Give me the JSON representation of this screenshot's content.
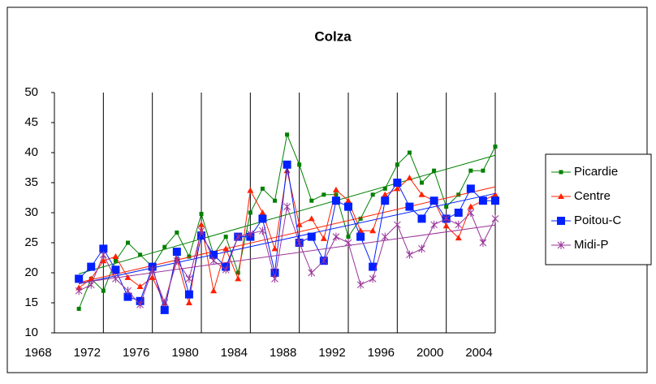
{
  "chart_data": {
    "type": "line",
    "title": "Colza",
    "x": [
      1970,
      1971,
      1972,
      1973,
      1974,
      1975,
      1976,
      1977,
      1978,
      1979,
      1980,
      1981,
      1982,
      1983,
      1984,
      1985,
      1986,
      1987,
      1988,
      1989,
      1990,
      1991,
      1992,
      1993,
      1994,
      1995,
      1996,
      1997,
      1998,
      1999,
      2000,
      2001,
      2002,
      2003,
      2004
    ],
    "series": [
      {
        "name": "Picardie",
        "color": "#008000",
        "marker": "square",
        "values": [
          14,
          19,
          17,
          22,
          25,
          23,
          21,
          24.3,
          26.7,
          22.7,
          29.8,
          23,
          26,
          20,
          30,
          34,
          32,
          43,
          38,
          32,
          33,
          33,
          26,
          29,
          33,
          34,
          38,
          40,
          35,
          37,
          31,
          33,
          37,
          37,
          41
        ]
      },
      {
        "name": "Centre",
        "color": "#ff2000",
        "marker": "triangle",
        "values": [
          17.5,
          19,
          22,
          22.7,
          19.2,
          17.7,
          19.2,
          15,
          22.3,
          15,
          28,
          17,
          24,
          19,
          33.7,
          30,
          24,
          37,
          28,
          29,
          25.7,
          33.8,
          32,
          27,
          27,
          33,
          34,
          35.8,
          33,
          32,
          27.8,
          25.8,
          31,
          32,
          33
        ]
      },
      {
        "name": "Poitou-C",
        "color": "#0020ff",
        "marker": "bigsquare",
        "values": [
          19,
          21,
          24,
          20.5,
          16,
          15.3,
          21,
          13.8,
          23.5,
          16.4,
          26.2,
          23,
          21,
          26,
          26,
          29,
          20,
          38,
          25,
          26,
          22,
          32,
          31,
          26,
          21,
          32,
          35,
          31,
          29,
          32,
          29,
          30,
          34,
          32,
          32
        ]
      },
      {
        "name": "Midi-P",
        "color": "#993399",
        "marker": "star",
        "values": [
          17,
          18,
          23,
          19,
          17,
          14.7,
          20.5,
          15,
          22,
          19,
          27,
          22,
          20.5,
          26,
          26.5,
          27,
          19,
          31,
          25,
          20,
          22,
          26,
          25,
          18,
          19,
          26,
          28,
          23,
          24,
          28,
          29,
          28,
          30,
          25,
          29
        ]
      }
    ],
    "trendlines": true,
    "xlim": [
      1968,
      2004
    ],
    "xticks": [
      1968,
      1972,
      1976,
      1980,
      1984,
      1988,
      1992,
      1996,
      2000,
      2004
    ],
    "ylim": [
      10,
      50
    ],
    "yticks": [
      10,
      15,
      20,
      25,
      30,
      35,
      40,
      45,
      50
    ],
    "grid": "x",
    "legend": "right"
  }
}
